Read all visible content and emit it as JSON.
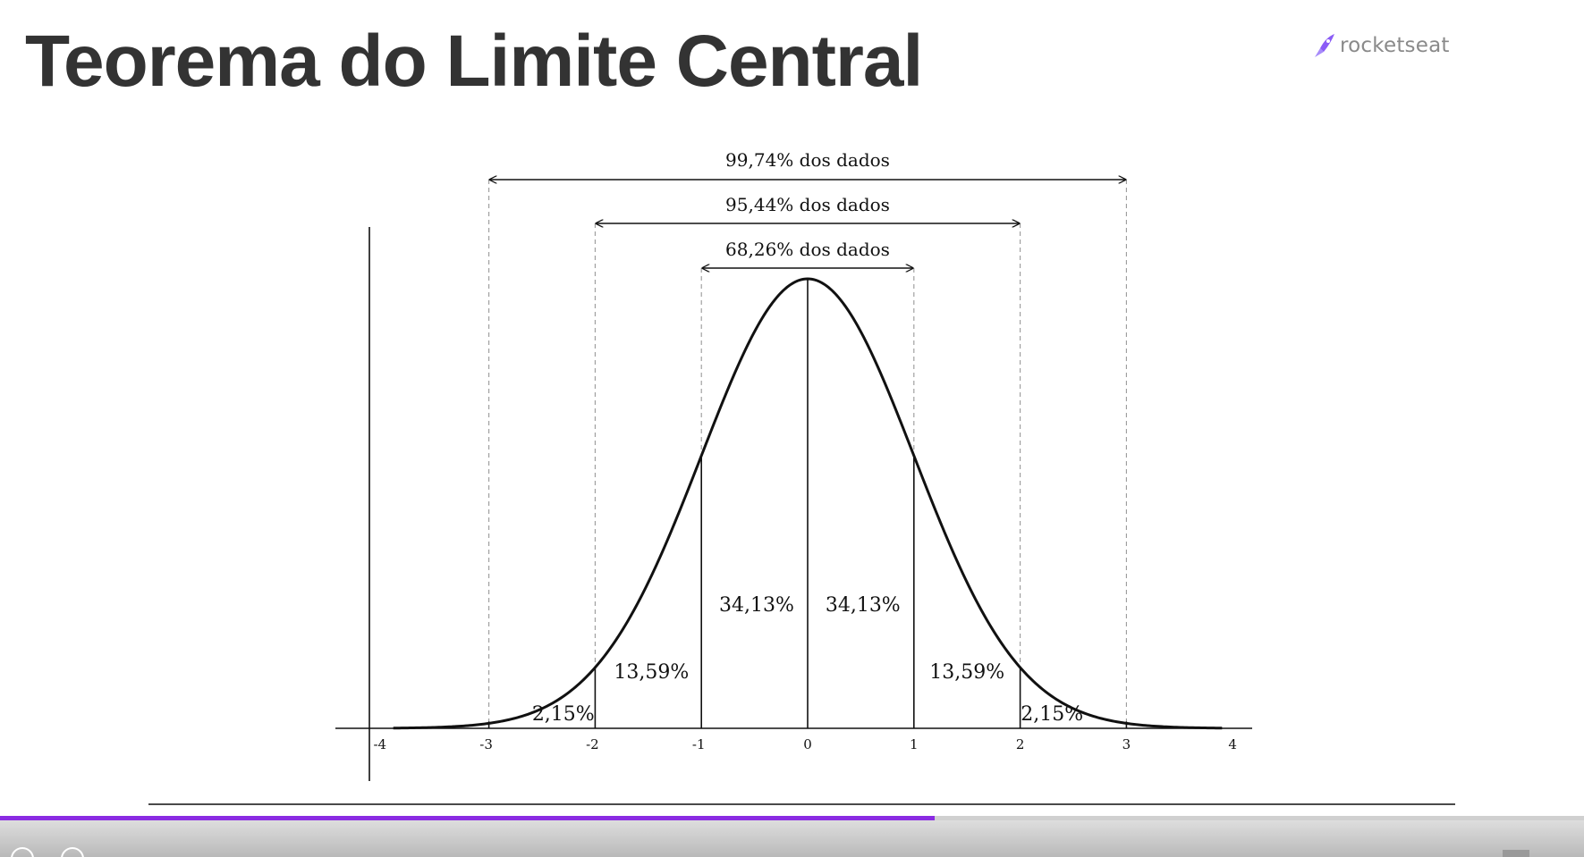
{
  "slide": {
    "title": "Teorema do Limite Central"
  },
  "brand": {
    "name": "rocketseat",
    "icon": "rocket-icon",
    "accent_color": "#8b5cf6"
  },
  "chart_data": {
    "type": "line",
    "function": "normal probability density",
    "x_ticks": [
      "-4",
      "-3",
      "-2",
      "-1",
      "0",
      "1",
      "2",
      "3",
      "4"
    ],
    "xlim": [
      -4,
      4
    ],
    "segments": [
      {
        "range": [
          -3,
          -2
        ],
        "label": "2,15%"
      },
      {
        "range": [
          -2,
          -1
        ],
        "label": "13,59%"
      },
      {
        "range": [
          -1,
          0
        ],
        "label": "34,13%"
      },
      {
        "range": [
          0,
          1
        ],
        "label": "34,13%"
      },
      {
        "range": [
          1,
          2
        ],
        "label": "13,59%"
      },
      {
        "range": [
          2,
          3
        ],
        "label": "2,15%"
      }
    ],
    "intervals": [
      {
        "range": [
          -1,
          1
        ],
        "label": "68,26% dos dados"
      },
      {
        "range": [
          -2,
          2
        ],
        "label": "95,44% dos dados"
      },
      {
        "range": [
          -3,
          3
        ],
        "label": "99,74% dos dados"
      }
    ],
    "grid": false
  },
  "player": {
    "progress": 0.59,
    "progress_color": "#8a2be2"
  }
}
